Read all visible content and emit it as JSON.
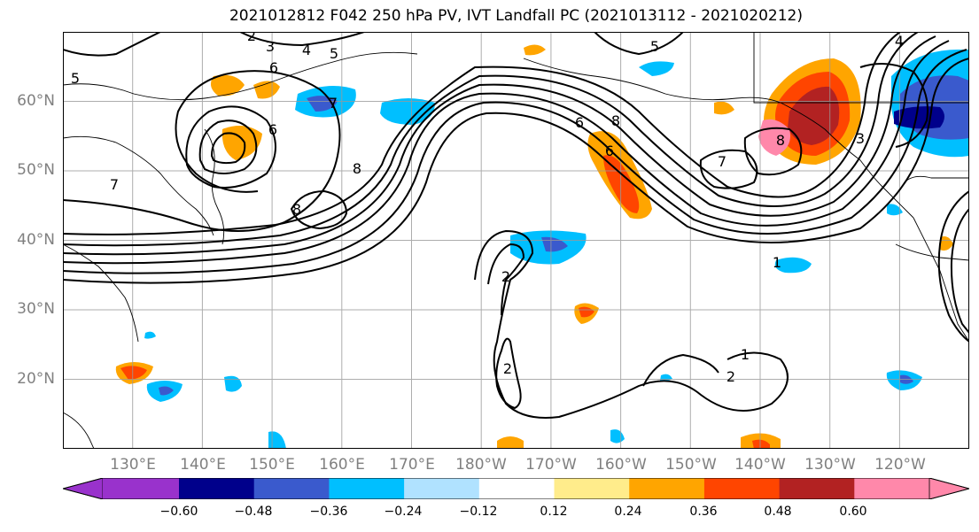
{
  "title": "2021012812 F042 250 hPa PV, IVT Landfall PC (2021013112 - 2021020212)",
  "lat_labels": [
    "60°N",
    "50°N",
    "40°N",
    "30°N",
    "20°N"
  ],
  "lon_labels": [
    "130°E",
    "140°E",
    "150°E",
    "160°E",
    "170°E",
    "180°W",
    "170°W",
    "160°W",
    "150°W",
    "140°W",
    "130°W",
    "120°W"
  ],
  "colorbar": {
    "ticks": [
      "−0.60",
      "−0.48",
      "−0.36",
      "−0.24",
      "−0.12",
      "0.12",
      "0.24",
      "0.36",
      "0.48",
      "0.60"
    ],
    "colors": [
      "#9932cc",
      "#00008b",
      "#3a5acd",
      "#00bfff",
      "#b0e2ff",
      "#ffffff",
      "#ffec8b",
      "#ffa500",
      "#ff4500",
      "#b22222",
      "#ff88aa"
    ]
  },
  "contour_labels": [
    "2",
    "3",
    "4",
    "5",
    "6",
    "6",
    "7",
    "8",
    "1",
    "2",
    "2",
    "1",
    "2",
    "8",
    "7",
    "6",
    "8",
    "4",
    "5",
    "3",
    "6",
    "7",
    "8",
    "5"
  ],
  "map": {
    "lat_range": [
      10,
      70
    ],
    "lon_range_east": [
      120,
      250
    ],
    "grid_lats": [
      20,
      30,
      40,
      50,
      60
    ],
    "grid_lons": [
      130,
      140,
      150,
      160,
      170,
      180,
      190,
      200,
      210,
      220,
      230,
      240
    ]
  }
}
